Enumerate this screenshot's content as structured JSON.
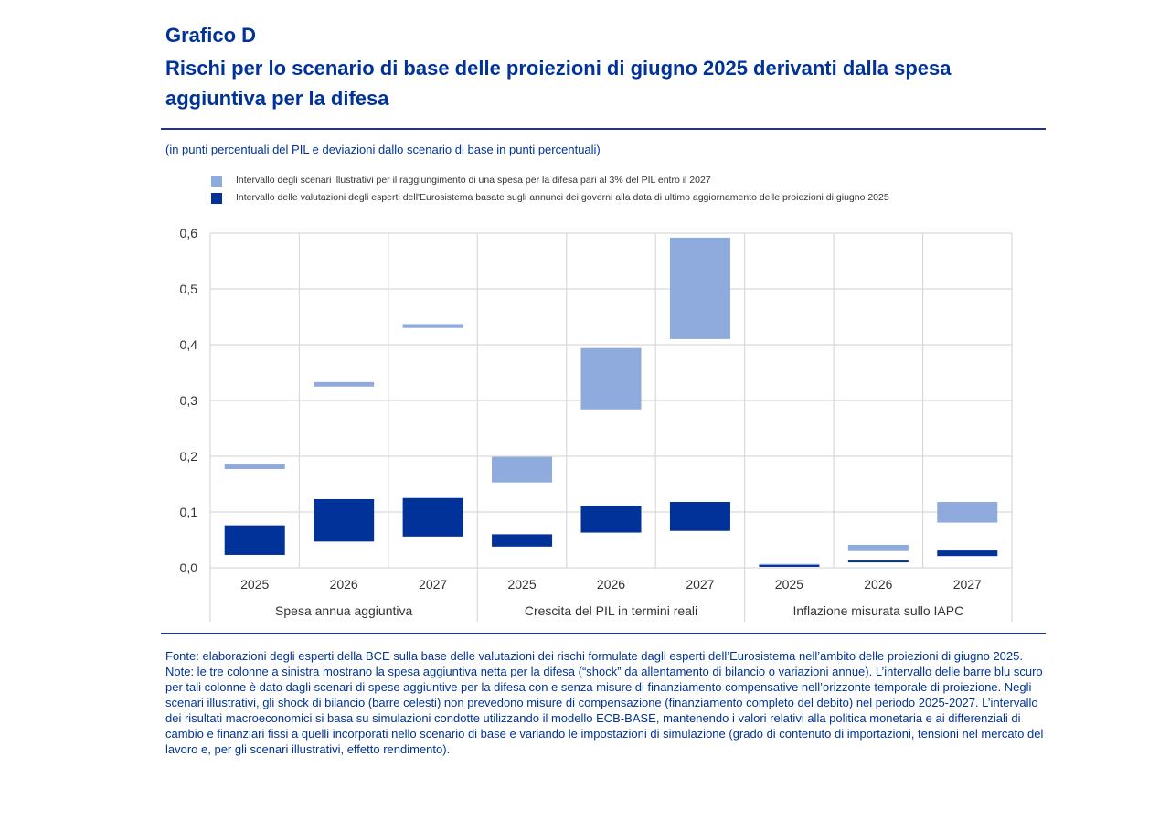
{
  "header": {
    "figure_label": "Grafico D",
    "title": "Rischi per lo scenario di base delle proiezioni di giugno 2025 derivanti dalla spesa aggiuntiva per la difesa",
    "subtitle": "(in punti percentuali del PIL e deviazioni dallo scenario di base in punti percentuali)"
  },
  "colors": {
    "title": "#003399",
    "light_series": "#8faadc",
    "dark_series": "#003299",
    "rule": "#22357a",
    "grid": "#d9d9d9"
  },
  "chart_data": {
    "type": "bar",
    "subtype": "floating-range",
    "title": "Rischi per lo scenario di base delle proiezioni di giugno 2025 derivanti dalla spesa aggiuntiva per la difesa",
    "ylabel": "",
    "xlabel": "",
    "ylim": [
      0,
      0.6
    ],
    "yticks": [
      "0,0",
      "0,1",
      "0,2",
      "0,3",
      "0,4",
      "0,5",
      "0,6"
    ],
    "ytick_values": [
      0,
      0.1,
      0.2,
      0.3,
      0.4,
      0.5,
      0.6
    ],
    "grid": true,
    "legend_position": "top-left",
    "groups": [
      "Spesa annua aggiuntiva",
      "Crescita del PIL in termini reali",
      "Inflazione misurata sullo IAPC"
    ],
    "categories": [
      "2025",
      "2026",
      "2027",
      "2025",
      "2026",
      "2027",
      "2025",
      "2026",
      "2027"
    ],
    "series": [
      {
        "name": "Intervallo degli scenari illustrativi per il raggiungimento di una spesa per la difesa pari al 3% del PIL entro il 2027",
        "color": "#8faadc",
        "low": [
          0.177,
          0.325,
          0.43,
          0.153,
          0.284,
          0.41,
          0.002,
          0.03,
          0.081
        ],
        "high": [
          0.186,
          0.333,
          0.437,
          0.199,
          0.394,
          0.592,
          0.007,
          0.041,
          0.118
        ]
      },
      {
        "name": "Intervallo delle valutazioni degli esperti dell'Eurosistema basate sugli annunci dei governi alla data di ultimo aggiornamento delle proiezioni di giugno 2025",
        "color": "#003299",
        "low": [
          0.023,
          0.047,
          0.056,
          0.038,
          0.063,
          0.066,
          0.002,
          0.01,
          0.021
        ],
        "high": [
          0.076,
          0.123,
          0.125,
          0.06,
          0.111,
          0.118,
          0.005,
          0.013,
          0.031
        ]
      }
    ]
  },
  "footnote": {
    "source": "Fonte: elaborazioni degli esperti della BCE sulla base delle valutazioni dei rischi formulate dagli esperti dell’Eurosistema nell’ambito delle proiezioni di giugno 2025.",
    "notes": "Note: le tre colonne a sinistra mostrano la spesa aggiuntiva netta per la difesa (“shock” da allentamento di bilancio o variazioni annue). L’intervallo delle barre blu scuro per tali colonne è dato dagli scenari di spese aggiuntive per la difesa con e senza misure di finanziamento compensative nell’orizzonte temporale di proiezione. Negli scenari illustrativi, gli shock di bilancio (barre celesti) non prevedono misure di compensazione (finanziamento completo del debito) nel periodo 2025-2027. L’intervallo dei risultati macroeconomici si basa su simulazioni condotte utilizzando il modello ECB-BASE, mantenendo i valori relativi alla politica monetaria e ai differenziali di cambio e finanziari fissi a quelli incorporati nello scenario di base e variando le impostazioni di simulazione (grado di contenuto di importazioni, tensioni nel mercato del lavoro e, per gli scenari illustrativi, effetto rendimento)."
  }
}
